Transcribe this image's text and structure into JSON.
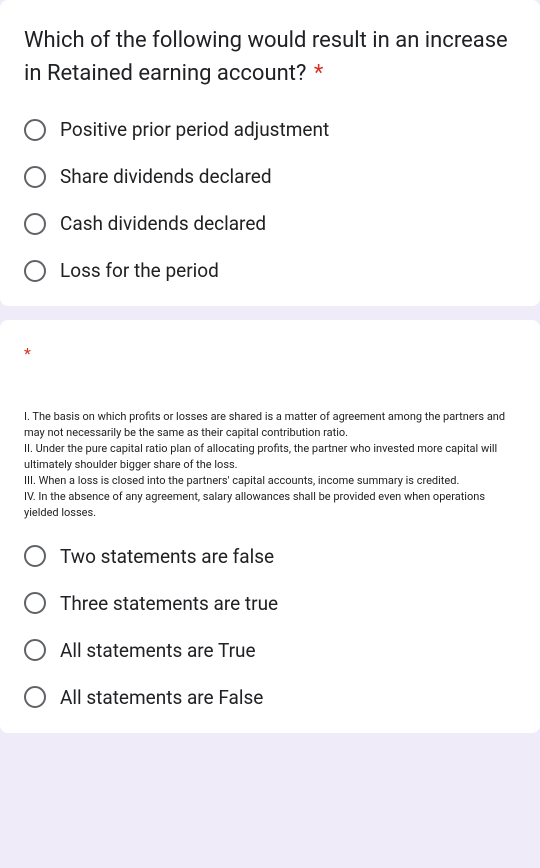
{
  "q1": {
    "title": "Which of the following would result in an increase in Retained earning account?",
    "required_marker": "*",
    "options": [
      "Positive prior period adjustment",
      "Share dividends declared",
      "Cash dividends declared",
      "Loss for the period"
    ]
  },
  "q2": {
    "required_marker": "*",
    "statements": [
      "I. The basis on which profits or losses are shared is a matter of agreement among the partners and may not necessarily be the same as their capital contribution ratio.",
      "II. Under the pure capital ratio plan of allocating profits, the partner who invested more capital will ultimately shoulder bigger share of the loss.",
      "III. When a loss is closed into the partners' capital accounts, income summary is credited.",
      "IV. In the absence of any agreement, salary allowances shall be provided even when operations yielded losses."
    ],
    "options": [
      "Two statements are false",
      "Three statements are true",
      "All statements are True",
      "All statements are False"
    ]
  },
  "colors": {
    "background": "#f0ebf8",
    "card_bg": "#ffffff",
    "text": "#202124",
    "radio_border": "#5f6368",
    "required": "#d93025"
  }
}
